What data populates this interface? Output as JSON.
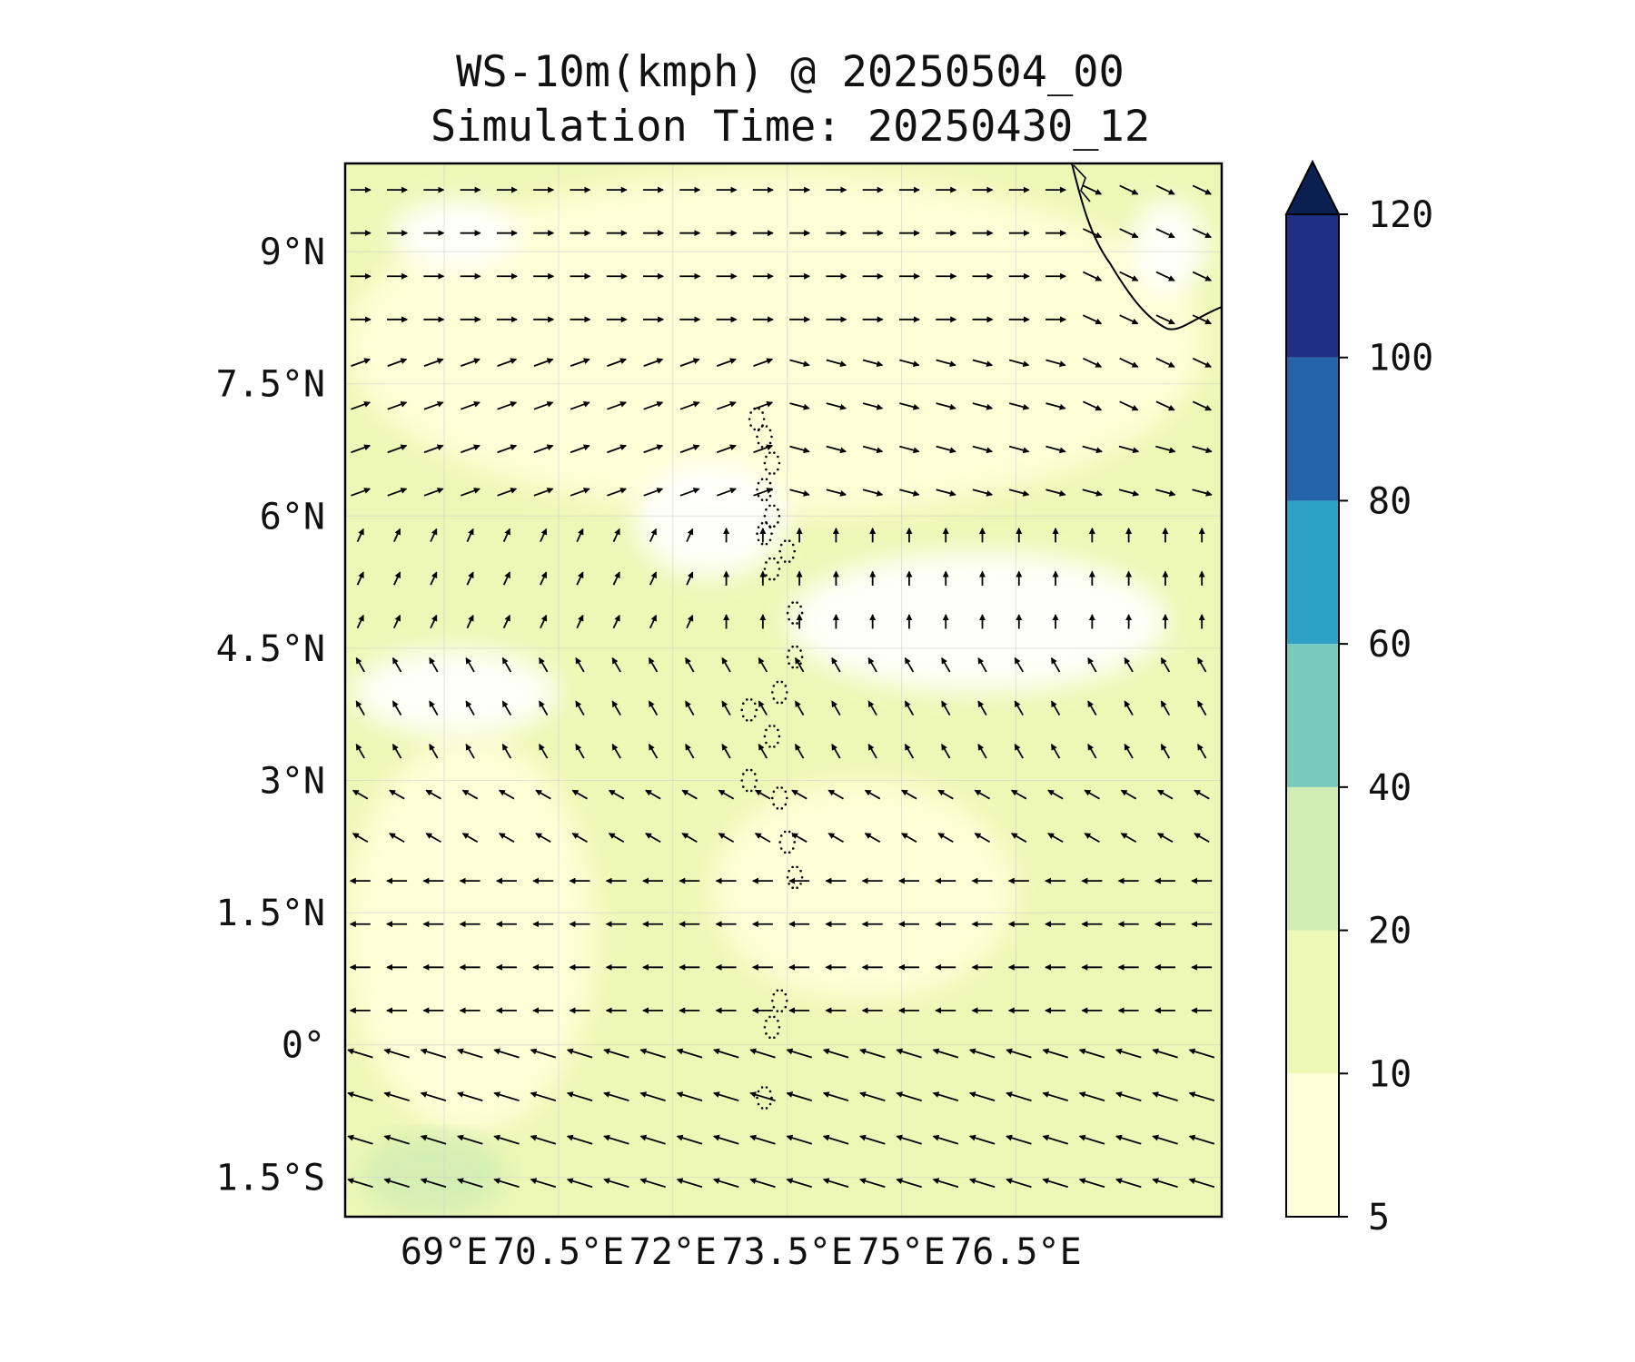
{
  "title_line1": "WS-10m(kmph) @ 20250504_00",
  "title_line2": "Simulation Time: 20250430_12",
  "chart_data": {
    "type": "heatmap",
    "variable": "10 m wind speed (kmph) with wind direction arrows",
    "lon_range": [
      67.7,
      79.2
    ],
    "lat_range": [
      -1.95,
      10.0
    ],
    "x_ticks": [
      {
        "value": 69,
        "label": "69°E"
      },
      {
        "value": 70.5,
        "label": "70.5°E"
      },
      {
        "value": 72,
        "label": "72°E"
      },
      {
        "value": 73.5,
        "label": "73.5°E"
      },
      {
        "value": 75,
        "label": "75°E"
      },
      {
        "value": 76.5,
        "label": "76.5°E"
      }
    ],
    "y_ticks": [
      {
        "value": 9,
        "label": "9°N"
      },
      {
        "value": 7.5,
        "label": "7.5°N"
      },
      {
        "value": 6,
        "label": "6°N"
      },
      {
        "value": 4.5,
        "label": "4.5°N"
      },
      {
        "value": 3,
        "label": "3°N"
      },
      {
        "value": 1.5,
        "label": "1.5°N"
      },
      {
        "value": 0,
        "label": "0°"
      },
      {
        "value": -1.5,
        "label": "1.5°S"
      }
    ],
    "grid": true,
    "colorbar": {
      "levels": [
        5,
        10,
        20,
        40,
        60,
        80,
        100,
        120
      ],
      "tick_labels": [
        "5",
        "10",
        "20",
        "40",
        "60",
        "80",
        "100",
        "120"
      ],
      "colors": [
        "#ffffd9",
        "#eef8b6",
        "#d1edb3",
        "#79c9bd",
        "#2ea2c6",
        "#2364ab",
        "#1f2f85"
      ],
      "extend_color": "#0b1f50",
      "extend": "max"
    },
    "field": {
      "base_color": "#eef8b6",
      "calm_color": "#ffffff",
      "light_color": "#ffffd9",
      "moderate_color": "#d1edb3",
      "calm_regions": [
        {
          "lon": [
            71.5,
            73.5
          ],
          "lat": [
            5.3,
            6.6
          ]
        },
        {
          "lon": [
            73.5,
            78.5
          ],
          "lat": [
            4.0,
            5.6
          ]
        },
        {
          "lon": [
            67.8,
            70.5
          ],
          "lat": [
            3.5,
            4.5
          ]
        },
        {
          "lon": [
            68.3,
            70.0
          ],
          "lat": [
            8.8,
            9.6
          ]
        },
        {
          "lon": [
            78.0,
            79.0
          ],
          "lat": [
            8.5,
            9.6
          ]
        }
      ],
      "light_regions": [
        {
          "lon": [
            67.7,
            71.0
          ],
          "lat": [
            -1.0,
            3.5
          ]
        },
        {
          "lon": [
            72.5,
            76.5
          ],
          "lat": [
            0.5,
            3.0
          ]
        },
        {
          "lon": [
            67.7,
            79.0
          ],
          "lat": [
            6.0,
            9.9
          ]
        }
      ],
      "moderate_regions": [
        {
          "lon": [
            67.9,
            69.8
          ],
          "lat": [
            -1.95,
            -1.0
          ]
        }
      ]
    },
    "wind_vectors": [
      {
        "lat_min": 8.0,
        "lat_max": 10.0,
        "direction_deg_to": 0,
        "note": "eastward"
      },
      {
        "lat_min": 6.0,
        "lat_max": 8.0,
        "direction_deg_to": 20,
        "note": "east-northeast in west, east-southeast in east"
      },
      {
        "lat_min": 4.0,
        "lat_max": 6.0,
        "direction_deg_to": 80,
        "note": "northward / weak"
      },
      {
        "lat_min": 2.5,
        "lat_max": 4.0,
        "direction_deg_to": 135,
        "note": "northwestward"
      },
      {
        "lat_min": 0.0,
        "lat_max": 2.5,
        "direction_deg_to": 180,
        "note": "westward"
      },
      {
        "lat_min": -2.0,
        "lat_max": 0.0,
        "direction_deg_to": 165,
        "note": "west-northwestward, stronger"
      }
    ]
  }
}
